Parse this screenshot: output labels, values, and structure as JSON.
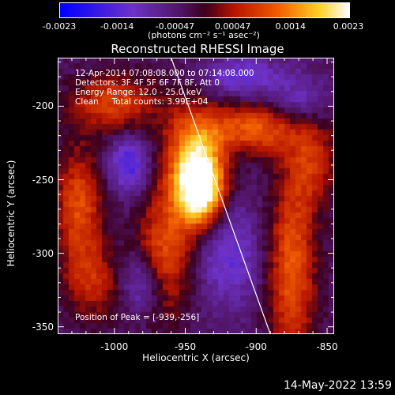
{
  "colorbar": {
    "ticks": [
      "-0.0023",
      "-0.0014",
      "-0.00047",
      "0.00047",
      "0.0014",
      "0.0023"
    ],
    "units_label": "(photons cm⁻² s⁻¹ asec⁻²)",
    "range": [
      -0.0023,
      0.0023
    ]
  },
  "title": "Reconstructed RHESSI Image",
  "info_lines": [
    "12-Apr-2014 07:08:08.000 to 07:14:08.000",
    "Detectors: 3F 4F 5F 6F 7F 8F, Att 0",
    "Energy Range: 12.0 - 25.0 keV",
    "Clean     Total counts: 3.99E+04"
  ],
  "peak_text": "Position of Peak = [-939,-256]",
  "timestamp": "14-May-2022 13:59",
  "chart_data": {
    "type": "heatmap",
    "title": "Reconstructed RHESSI Image",
    "xlabel": "Heliocentric X (arcsec)",
    "ylabel": "Heliocentric Y (arcsec)",
    "xlim": [
      -1040,
      -845
    ],
    "ylim": [
      -355,
      -167
    ],
    "x_ticks": [
      "-1000",
      "-950",
      "-900",
      "-850"
    ],
    "x_tick_values": [
      -1000,
      -950,
      -900,
      -850
    ],
    "y_ticks": [
      "-200",
      "-250",
      "-300",
      "-350"
    ],
    "y_tick_values": [
      -200,
      -250,
      -300,
      -350
    ],
    "colormap": "hessi (blue-purple-red-yellow-white)",
    "peak_position": [
      -939,
      -256
    ],
    "limb_line": [
      [
        -960,
        -167
      ],
      [
        -890,
        -355
      ]
    ],
    "blobs": [
      {
        "x": -939,
        "y": -256,
        "sx": 12,
        "sy": 18,
        "a": 1.0
      },
      {
        "x": -945,
        "y": -235,
        "sx": 14,
        "sy": 26,
        "a": 0.55
      },
      {
        "x": -965,
        "y": -300,
        "sx": 14,
        "sy": 30,
        "a": 0.5
      },
      {
        "x": -1025,
        "y": -268,
        "sx": 12,
        "sy": 28,
        "a": 0.5
      },
      {
        "x": -1000,
        "y": -198,
        "sx": 22,
        "sy": 14,
        "a": 0.45
      },
      {
        "x": -1015,
        "y": -320,
        "sx": 14,
        "sy": 18,
        "a": 0.35
      },
      {
        "x": -875,
        "y": -310,
        "sx": 12,
        "sy": 45,
        "a": 0.55
      },
      {
        "x": -900,
        "y": -215,
        "sx": 28,
        "sy": 12,
        "a": 0.55
      },
      {
        "x": -860,
        "y": -240,
        "sx": 12,
        "sy": 20,
        "a": 0.35
      },
      {
        "x": -990,
        "y": -240,
        "sx": 10,
        "sy": 14,
        "a": -0.45
      },
      {
        "x": -980,
        "y": -320,
        "sx": 10,
        "sy": 14,
        "a": -0.4
      },
      {
        "x": -910,
        "y": -180,
        "sx": 20,
        "sy": 10,
        "a": -0.35
      },
      {
        "x": -920,
        "y": -300,
        "sx": 16,
        "sy": 25,
        "a": -0.35
      },
      {
        "x": -870,
        "y": -200,
        "sx": 14,
        "sy": 14,
        "a": -0.3
      }
    ]
  }
}
